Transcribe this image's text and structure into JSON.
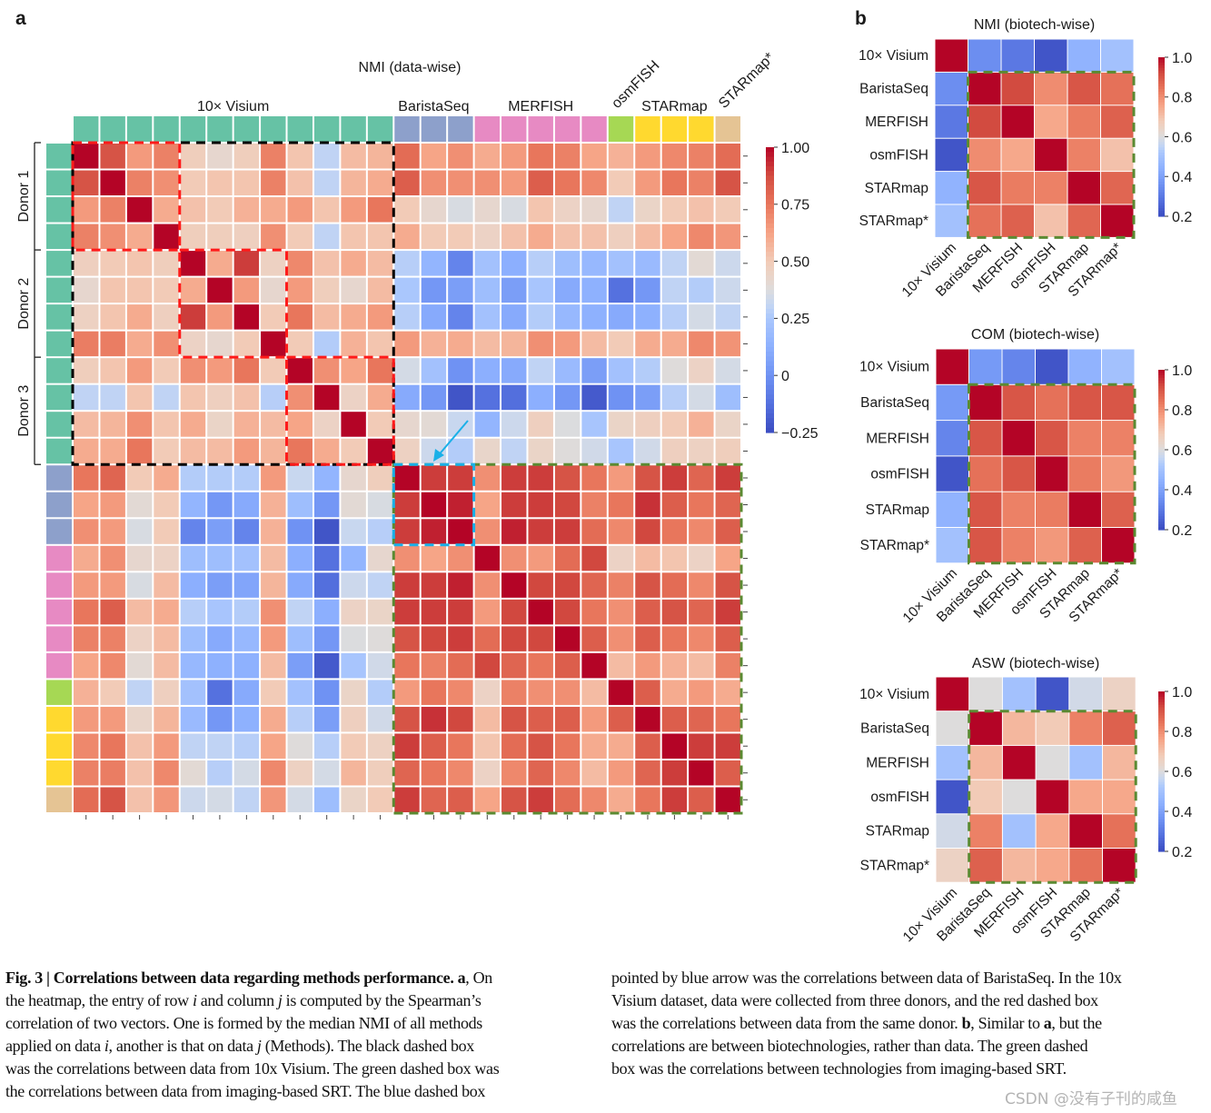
{
  "panel_labels": {
    "a": "a",
    "b": "b"
  },
  "chart_data": [
    {
      "type": "heatmap",
      "title": "NMI (data-wise)",
      "groups": [
        {
          "name": "10× Visium",
          "count": 12,
          "color": "#66c2a5"
        },
        {
          "name": "BaristaSeq",
          "count": 3,
          "color": "#8da0cb"
        },
        {
          "name": "MERFISH",
          "count": 5,
          "color": "#e78ac3"
        },
        {
          "name": "osmFISH",
          "count": 1,
          "color": "#a6d854"
        },
        {
          "name": "STARmap",
          "count": 3,
          "color": "#ffd92f"
        },
        {
          "name": "STARmap*",
          "count": 1,
          "color": "#e5c494"
        }
      ],
      "donors": [
        {
          "label": "Donor 1",
          "count": 4
        },
        {
          "label": "Donor 2",
          "count": 4
        },
        {
          "label": "Donor 3",
          "count": 4
        }
      ],
      "colorbar": {
        "min": -0.25,
        "max": 1.0,
        "colormap": "coolwarm",
        "ticks": [
          1.0,
          0.75,
          0.5,
          0.25,
          0,
          -0.25
        ],
        "tick_labels": [
          "1.00",
          "0.75",
          "0.50",
          "0.25",
          "0",
          "−0.25"
        ]
      },
      "highlight_boxes": [
        {
          "name": "10x-visium-box",
          "color": "#000000",
          "from": 0,
          "to": 11
        },
        {
          "name": "donor-1-box",
          "color": "#ff1a1a",
          "from": 0,
          "to": 3
        },
        {
          "name": "donor-2-box",
          "color": "#ff1a1a",
          "from": 4,
          "to": 7
        },
        {
          "name": "donor-3-box",
          "color": "#ff1a1a",
          "from": 8,
          "to": 11
        },
        {
          "name": "imaging-srt-box",
          "color": "#5b8a32",
          "from": 12,
          "to": 24
        },
        {
          "name": "baristaseq-box",
          "color": "#1ab0e8",
          "from": 12,
          "to": 14
        }
      ],
      "arrow_color": "#1ab0e8",
      "matrix": [
        [
          1,
          0.85,
          0.65,
          0.72,
          0.48,
          0.42,
          0.48,
          0.72,
          0.52,
          0.3,
          0.55,
          0.57,
          0.78,
          0.62,
          0.68,
          0.6,
          0.65,
          0.75,
          0.72,
          0.62,
          0.58,
          0.65,
          0.7,
          0.72,
          0.78
        ],
        [
          0.85,
          1,
          0.72,
          0.68,
          0.5,
          0.52,
          0.52,
          0.72,
          0.53,
          0.3,
          0.57,
          0.6,
          0.82,
          0.68,
          0.68,
          0.68,
          0.65,
          0.82,
          0.75,
          0.7,
          0.5,
          0.65,
          0.75,
          0.72,
          0.85
        ],
        [
          0.65,
          0.72,
          1,
          0.6,
          0.53,
          0.5,
          0.58,
          0.6,
          0.65,
          0.52,
          0.65,
          0.75,
          0.5,
          0.42,
          0.36,
          0.42,
          0.36,
          0.52,
          0.45,
          0.42,
          0.3,
          0.44,
          0.5,
          0.53,
          0.5
        ],
        [
          0.72,
          0.68,
          0.6,
          1,
          0.48,
          0.48,
          0.47,
          0.68,
          0.5,
          0.3,
          0.52,
          0.52,
          0.6,
          0.5,
          0.5,
          0.45,
          0.53,
          0.6,
          0.53,
          0.53,
          0.47,
          0.55,
          0.62,
          0.7,
          0.66
        ],
        [
          0.47,
          0.5,
          0.52,
          0.48,
          1,
          0.6,
          0.9,
          0.46,
          0.7,
          0.53,
          0.6,
          0.55,
          0.28,
          0.15,
          -0.05,
          0.22,
          0.12,
          0.28,
          0.2,
          0.17,
          0.22,
          0.18,
          0.3,
          0.4,
          0.33
        ],
        [
          0.42,
          0.52,
          0.52,
          0.5,
          0.6,
          1,
          0.65,
          0.42,
          0.65,
          0.48,
          0.42,
          0.55,
          0.25,
          0.02,
          0.05,
          0.2,
          0.05,
          0.24,
          0.1,
          0.13,
          -0.12,
          0.02,
          0.3,
          0.27,
          0.33
        ],
        [
          0.46,
          0.52,
          0.6,
          0.47,
          0.9,
          0.65,
          1,
          0.5,
          0.75,
          0.55,
          0.6,
          0.65,
          0.28,
          0.1,
          -0.05,
          0.22,
          0.1,
          0.27,
          0.17,
          0.13,
          0.1,
          0.13,
          0.28,
          0.35,
          0.3
        ],
        [
          0.73,
          0.73,
          0.6,
          0.68,
          0.45,
          0.42,
          0.5,
          1,
          0.5,
          0.27,
          0.58,
          0.52,
          0.65,
          0.58,
          0.6,
          0.55,
          0.57,
          0.68,
          0.65,
          0.55,
          0.5,
          0.6,
          0.6,
          0.7,
          0.67
        ],
        [
          0.48,
          0.52,
          0.65,
          0.5,
          0.68,
          0.65,
          0.75,
          0.5,
          1,
          0.68,
          0.62,
          0.75,
          0.35,
          0.22,
          0,
          0.12,
          0.1,
          0.3,
          0.18,
          0.05,
          0.22,
          0.27,
          0.38,
          0.45,
          0.35
        ],
        [
          0.3,
          0.3,
          0.52,
          0.3,
          0.52,
          0.47,
          0.53,
          0.28,
          0.68,
          1,
          0.45,
          0.6,
          0.1,
          0.02,
          -0.22,
          -0.12,
          -0.13,
          0.12,
          0.02,
          -0.2,
          0,
          0.05,
          0.28,
          0.35,
          0.2
        ],
        [
          0.55,
          0.57,
          0.68,
          0.52,
          0.6,
          0.44,
          0.58,
          0.55,
          0.62,
          0.45,
          1,
          0.5,
          0.42,
          0.4,
          0.32,
          0.15,
          0.33,
          0.47,
          0.37,
          0.24,
          0.44,
          0.47,
          0.5,
          0.58,
          0.44
        ],
        [
          0.6,
          0.6,
          0.75,
          0.5,
          0.55,
          0.55,
          0.65,
          0.57,
          0.75,
          0.6,
          0.5,
          1,
          0.46,
          0.33,
          0.27,
          0.43,
          0.3,
          0.44,
          0.38,
          0.34,
          0.24,
          0.34,
          0.47,
          0.46,
          0.48
        ],
        [
          0.75,
          0.8,
          0.5,
          0.6,
          0.27,
          0.27,
          0.27,
          0.65,
          0.32,
          0.15,
          0.42,
          0.48,
          1,
          0.9,
          0.9,
          0.68,
          0.9,
          0.9,
          0.85,
          0.75,
          0.65,
          0.85,
          0.9,
          0.8,
          0.9
        ],
        [
          0.62,
          0.65,
          0.4,
          0.5,
          0.15,
          0.02,
          0.1,
          0.58,
          0.2,
          0.02,
          0.4,
          0.36,
          0.9,
          1,
          0.95,
          0.62,
          0.9,
          0.9,
          0.88,
          0.72,
          0.75,
          0.92,
          0.82,
          0.75,
          0.8
        ],
        [
          0.68,
          0.65,
          0.36,
          0.5,
          -0.05,
          0.05,
          -0.05,
          0.58,
          0,
          -0.22,
          0.32,
          0.28,
          0.9,
          0.95,
          1,
          0.68,
          0.95,
          0.9,
          0.9,
          0.78,
          0.7,
          0.88,
          0.75,
          0.7,
          0.82
        ],
        [
          0.6,
          0.68,
          0.42,
          0.45,
          0.2,
          0.2,
          0.22,
          0.55,
          0.12,
          -0.12,
          0.15,
          0.42,
          0.68,
          0.62,
          0.68,
          1,
          0.68,
          0.65,
          0.78,
          0.88,
          0.45,
          0.55,
          0.52,
          0.45,
          0.62
        ],
        [
          0.65,
          0.65,
          0.36,
          0.55,
          0.12,
          0.05,
          0.08,
          0.57,
          0.1,
          -0.13,
          0.33,
          0.3,
          0.9,
          0.9,
          0.95,
          0.68,
          1,
          0.88,
          0.88,
          0.8,
          0.72,
          0.85,
          0.78,
          0.7,
          0.85
        ],
        [
          0.75,
          0.82,
          0.55,
          0.6,
          0.28,
          0.24,
          0.27,
          0.68,
          0.3,
          0.12,
          0.45,
          0.44,
          0.9,
          0.9,
          0.9,
          0.65,
          0.88,
          1,
          0.88,
          0.75,
          0.68,
          0.82,
          0.85,
          0.8,
          0.9
        ],
        [
          0.72,
          0.72,
          0.45,
          0.55,
          0.2,
          0.1,
          0.17,
          0.65,
          0.2,
          0.02,
          0.37,
          0.38,
          0.85,
          0.88,
          0.9,
          0.78,
          0.88,
          0.88,
          1,
          0.82,
          0.68,
          0.82,
          0.75,
          0.7,
          0.82
        ],
        [
          0.62,
          0.7,
          0.4,
          0.55,
          0.17,
          0.13,
          0.13,
          0.55,
          0.05,
          -0.2,
          0.24,
          0.34,
          0.75,
          0.72,
          0.78,
          0.88,
          0.8,
          0.75,
          0.82,
          1,
          0.55,
          0.65,
          0.58,
          0.55,
          0.72
        ],
        [
          0.58,
          0.5,
          0.3,
          0.47,
          0.22,
          -0.12,
          0.1,
          0.5,
          0.22,
          0,
          0.44,
          0.27,
          0.65,
          0.75,
          0.7,
          0.45,
          0.72,
          0.68,
          0.68,
          0.55,
          1,
          0.82,
          0.6,
          0.65,
          0.6
        ],
        [
          0.65,
          0.65,
          0.43,
          0.57,
          0.18,
          0.02,
          0.13,
          0.6,
          0.28,
          0.05,
          0.47,
          0.34,
          0.85,
          0.92,
          0.88,
          0.55,
          0.85,
          0.82,
          0.82,
          0.65,
          0.82,
          1,
          0.82,
          0.8,
          0.75
        ],
        [
          0.7,
          0.75,
          0.53,
          0.65,
          0.3,
          0.3,
          0.28,
          0.62,
          0.38,
          0.28,
          0.5,
          0.46,
          0.9,
          0.82,
          0.75,
          0.52,
          0.78,
          0.85,
          0.75,
          0.6,
          0.6,
          0.82,
          1,
          0.9,
          0.9
        ],
        [
          0.72,
          0.73,
          0.53,
          0.7,
          0.4,
          0.28,
          0.35,
          0.7,
          0.46,
          0.35,
          0.57,
          0.48,
          0.8,
          0.75,
          0.7,
          0.45,
          0.7,
          0.8,
          0.7,
          0.55,
          0.65,
          0.8,
          0.9,
          1,
          0.82
        ],
        [
          0.78,
          0.85,
          0.53,
          0.66,
          0.33,
          0.35,
          0.3,
          0.66,
          0.35,
          0.2,
          0.44,
          0.5,
          0.9,
          0.8,
          0.82,
          0.62,
          0.85,
          0.9,
          0.78,
          0.7,
          0.6,
          0.75,
          0.9,
          0.82,
          1
        ]
      ]
    },
    {
      "type": "heatmap",
      "title": "NMI (biotech-wise)",
      "labels": [
        "10× Visium",
        "BaristaSeq",
        "MERFISH",
        "osmFISH",
        "STARmap",
        "STARmap*"
      ],
      "colorbar": {
        "min": 0.2,
        "max": 1.0,
        "colormap": "coolwarm",
        "ticks": [
          1.0,
          0.8,
          0.6,
          0.4,
          0.2
        ],
        "tick_labels": [
          "1.0",
          "0.8",
          "0.6",
          "0.4",
          "0.2"
        ]
      },
      "green_box": {
        "color": "#5b8a32",
        "from": 1,
        "to": 5
      },
      "matrix": [
        [
          1,
          0.35,
          0.3,
          0.22,
          0.45,
          0.5
        ],
        [
          0.35,
          1,
          0.92,
          0.8,
          0.9,
          0.85
        ],
        [
          0.3,
          0.92,
          1,
          0.75,
          0.83,
          0.88
        ],
        [
          0.22,
          0.8,
          0.75,
          1,
          0.82,
          0.7
        ],
        [
          0.45,
          0.9,
          0.83,
          0.82,
          1,
          0.87
        ],
        [
          0.5,
          0.85,
          0.88,
          0.7,
          0.87,
          1
        ]
      ]
    },
    {
      "type": "heatmap",
      "title": "COM (biotech-wise)",
      "labels": [
        "10× Visium",
        "BaristaSeq",
        "MERFISH",
        "osmFISH",
        "STARmap",
        "STARmap*"
      ],
      "colorbar": {
        "min": 0.2,
        "max": 1.0,
        "colormap": "coolwarm",
        "ticks": [
          1.0,
          0.8,
          0.6,
          0.4,
          0.2
        ],
        "tick_labels": [
          "1.0",
          "0.8",
          "0.6",
          "0.4",
          "0.2"
        ]
      },
      "green_box": {
        "color": "#5b8a32",
        "from": 1,
        "to": 5
      },
      "matrix": [
        [
          1,
          0.38,
          0.33,
          0.22,
          0.45,
          0.5
        ],
        [
          0.38,
          1,
          0.9,
          0.85,
          0.9,
          0.9
        ],
        [
          0.33,
          0.9,
          1,
          0.9,
          0.82,
          0.82
        ],
        [
          0.22,
          0.85,
          0.9,
          1,
          0.83,
          0.78
        ],
        [
          0.45,
          0.9,
          0.82,
          0.83,
          1,
          0.88
        ],
        [
          0.5,
          0.9,
          0.82,
          0.78,
          0.88,
          1
        ]
      ]
    },
    {
      "type": "heatmap",
      "title": "ASW (biotech-wise)",
      "labels": [
        "10× Visium",
        "BaristaSeq",
        "MERFISH",
        "osmFISH",
        "STARmap",
        "STARmap*"
      ],
      "colorbar": {
        "min": 0.2,
        "max": 1.0,
        "colormap": "coolwarm",
        "ticks": [
          1.0,
          0.8,
          0.6,
          0.4,
          0.2
        ],
        "tick_labels": [
          "1.0",
          "0.8",
          "0.6",
          "0.4",
          "0.2"
        ]
      },
      "green_box": {
        "color": "#5b8a32",
        "from": 1,
        "to": 5
      },
      "matrix": [
        [
          1,
          0.6,
          0.5,
          0.22,
          0.58,
          0.65
        ],
        [
          0.6,
          1,
          0.72,
          0.68,
          0.82,
          0.88
        ],
        [
          0.5,
          0.72,
          1,
          0.6,
          0.5,
          0.72
        ],
        [
          0.22,
          0.68,
          0.6,
          1,
          0.75,
          0.75
        ],
        [
          0.58,
          0.82,
          0.5,
          0.75,
          1,
          0.85
        ],
        [
          0.65,
          0.88,
          0.72,
          0.75,
          0.85,
          1
        ]
      ]
    }
  ],
  "caption": {
    "left": [
      [
        {
          "t": "Fig. 3 | Correlations between data regarding methods performance. a",
          "s": "b"
        },
        {
          "t": ", On",
          "s": ""
        }
      ],
      [
        {
          "t": "the heatmap, the entry of row ",
          "s": ""
        },
        {
          "t": "i",
          "s": "i"
        },
        {
          "t": " and column ",
          "s": ""
        },
        {
          "t": "j",
          "s": "i"
        },
        {
          "t": " is computed by the Spearman’s",
          "s": ""
        }
      ],
      [
        {
          "t": "correlation of two vectors. One is formed by the median NMI of all methods",
          "s": ""
        }
      ],
      [
        {
          "t": "applied on data ",
          "s": ""
        },
        {
          "t": "i",
          "s": "i"
        },
        {
          "t": ", another is that on data ",
          "s": ""
        },
        {
          "t": "j",
          "s": "i"
        },
        {
          "t": " (Methods). The black dashed box",
          "s": ""
        }
      ],
      [
        {
          "t": "was the correlations between data from 10x Visium. The green dashed box was",
          "s": ""
        }
      ],
      [
        {
          "t": "the correlations between data from imaging-based SRT. The blue dashed box",
          "s": ""
        }
      ]
    ],
    "right": [
      [
        {
          "t": "pointed by blue arrow was the correlations between data of BaristaSeq. In the 10x",
          "s": ""
        }
      ],
      [
        {
          "t": "Visium dataset, data were collected from three donors, and the red dashed box",
          "s": ""
        }
      ],
      [
        {
          "t": "was the correlations between data from the same donor. ",
          "s": ""
        },
        {
          "t": "b",
          "s": "b"
        },
        {
          "t": ", Similar to ",
          "s": ""
        },
        {
          "t": "a",
          "s": "b"
        },
        {
          "t": ", but the",
          "s": ""
        }
      ],
      [
        {
          "t": "correlations are between biotechnologies, rather than data. The green dashed",
          "s": ""
        }
      ],
      [
        {
          "t": "box was the correlations between technologies from imaging-based SRT.",
          "s": ""
        }
      ]
    ]
  },
  "watermark": "CSDN @没有子刊的咸鱼"
}
